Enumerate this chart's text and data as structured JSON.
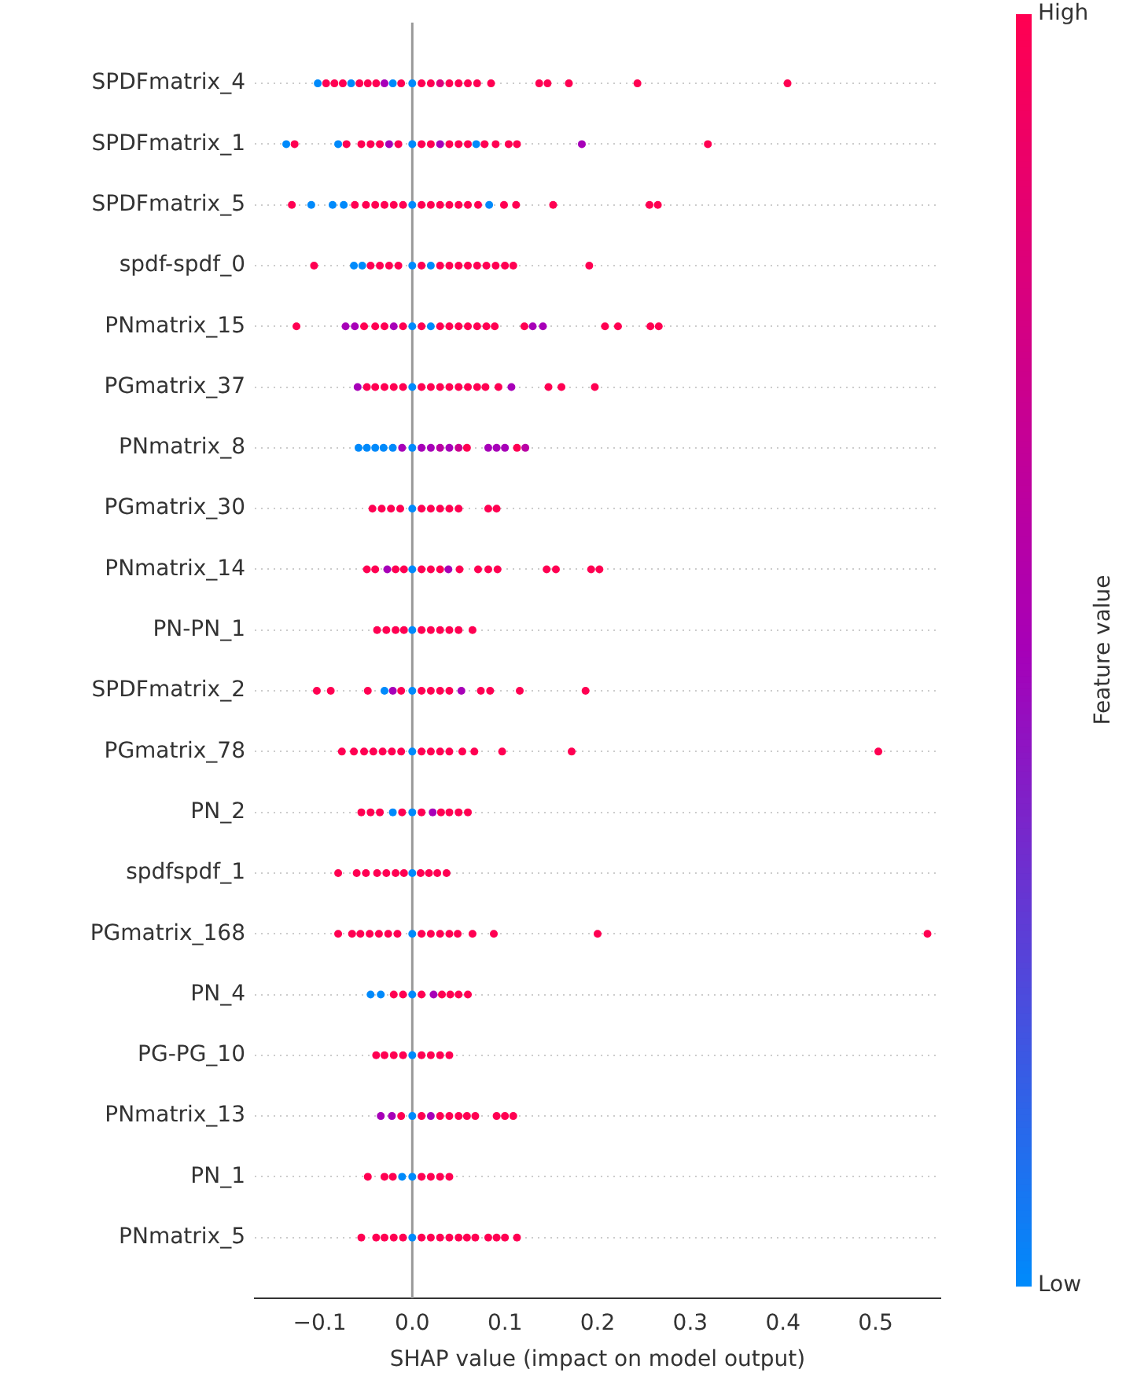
{
  "chart_data": {
    "type": "scatter",
    "orientation": "horizontal",
    "xlabel": "SHAP value (impact on model output)",
    "clabel": "Feature value",
    "clim": [
      0,
      1
    ],
    "cticks": [
      {
        "value": 0,
        "label": "Low"
      },
      {
        "value": 1,
        "label": "High"
      }
    ],
    "xlim": [
      -0.17,
      0.57
    ],
    "xticks": [
      {
        "value": -0.1,
        "label": "−0.1"
      },
      {
        "value": 0,
        "label": "0.0"
      },
      {
        "value": 0.1,
        "label": "0.1"
      },
      {
        "value": 0.2,
        "label": "0.2"
      },
      {
        "value": 0.3,
        "label": "0.3"
      },
      {
        "value": 0.4,
        "label": "0.4"
      },
      {
        "value": 0.5,
        "label": "0.5"
      }
    ],
    "grid": "y",
    "marker": "circle",
    "ref_lines": [
      {
        "axis": "x",
        "value": 0,
        "color": "#999999"
      }
    ],
    "categories": [
      "SPDFmatrix_4",
      "SPDFmatrix_1",
      "SPDFmatrix_5",
      "spdf-spdf_0",
      "PNmatrix_15",
      "PGmatrix_37",
      "PNmatrix_8",
      "PGmatrix_30",
      "PNmatrix_14",
      "PN-PN_1",
      "SPDFmatrix_2",
      "PGmatrix_78",
      "PN_2",
      "spdfspdf_1",
      "PGmatrix_168",
      "PN_4",
      "PG-PG_10",
      "PNmatrix_13",
      "PN_1",
      "PNmatrix_5"
    ],
    "series": [
      {
        "x": [
          "SPDFmatrix_4",
          "SPDFmatrix_4",
          "SPDFmatrix_4",
          "SPDFmatrix_4",
          "SPDFmatrix_4",
          "SPDFmatrix_4",
          "SPDFmatrix_4",
          "SPDFmatrix_4",
          "SPDFmatrix_4",
          "SPDFmatrix_4",
          "SPDFmatrix_4",
          "SPDFmatrix_4",
          "SPDFmatrix_4",
          "SPDFmatrix_4",
          "SPDFmatrix_4",
          "SPDFmatrix_4",
          "SPDFmatrix_4",
          "SPDFmatrix_4",
          "SPDFmatrix_4",
          "SPDFmatrix_4",
          "SPDFmatrix_4",
          "SPDFmatrix_4",
          "SPDFmatrix_4",
          "SPDFmatrix_4",
          "SPDFmatrix_4"
        ],
        "values": [
          -0.102,
          -0.093,
          -0.084,
          -0.075,
          -0.066,
          -0.057,
          -0.048,
          -0.039,
          -0.03,
          -0.021,
          -0.012,
          0,
          0.01,
          0.02,
          0.03,
          0.04,
          0.05,
          0.06,
          0.07,
          0.085,
          0.137,
          0.146,
          0.169,
          0.243,
          0.405
        ],
        "colors": [
          "#008afb",
          "#ff0052",
          "#ff0052",
          "#ff0052",
          "#008afb",
          "#ff0052",
          "#ff0052",
          "#ff0052",
          "#a700b8",
          "#008afb",
          "#ff0052",
          "#008afb",
          "#ff0052",
          "#ff0052",
          "#dc007b",
          "#ff0052",
          "#ff0052",
          "#ff0052",
          "#ff0052",
          "#ff0052",
          "#ff0052",
          "#ff0052",
          "#ff0052",
          "#ff0052",
          "#ff0052"
        ]
      },
      {
        "x": [
          "SPDFmatrix_1",
          "SPDFmatrix_1",
          "SPDFmatrix_1",
          "SPDFmatrix_1",
          "SPDFmatrix_1",
          "SPDFmatrix_1",
          "SPDFmatrix_1",
          "SPDFmatrix_1",
          "SPDFmatrix_1",
          "SPDFmatrix_1",
          "SPDFmatrix_1",
          "SPDFmatrix_1",
          "SPDFmatrix_1",
          "SPDFmatrix_1",
          "SPDFmatrix_1",
          "SPDFmatrix_1",
          "SPDFmatrix_1",
          "SPDFmatrix_1",
          "SPDFmatrix_1",
          "SPDFmatrix_1",
          "SPDFmatrix_1",
          "SPDFmatrix_1",
          "SPDFmatrix_1"
        ],
        "values": [
          -0.136,
          -0.127,
          -0.08,
          -0.071,
          -0.055,
          -0.045,
          -0.035,
          -0.025,
          -0.015,
          0,
          0.01,
          0.02,
          0.03,
          0.04,
          0.05,
          0.06,
          0.069,
          0.078,
          0.09,
          0.104,
          0.113,
          0.183,
          0.319
        ],
        "colors": [
          "#008afb",
          "#ff0052",
          "#008afb",
          "#ff0052",
          "#ff0052",
          "#ff0052",
          "#ff0052",
          "#a700b8",
          "#ff0052",
          "#008afb",
          "#ff0052",
          "#ff0052",
          "#a700b8",
          "#ff0052",
          "#ff0052",
          "#ff0052",
          "#008afb",
          "#ff0052",
          "#ff0052",
          "#ff0052",
          "#ff0052",
          "#a700b8",
          "#ff0052"
        ]
      },
      {
        "x": [
          "SPDFmatrix_5",
          "SPDFmatrix_5",
          "SPDFmatrix_5",
          "SPDFmatrix_5",
          "SPDFmatrix_5",
          "SPDFmatrix_5",
          "SPDFmatrix_5",
          "SPDFmatrix_5",
          "SPDFmatrix_5",
          "SPDFmatrix_5",
          "SPDFmatrix_5",
          "SPDFmatrix_5",
          "SPDFmatrix_5",
          "SPDFmatrix_5",
          "SPDFmatrix_5",
          "SPDFmatrix_5",
          "SPDFmatrix_5",
          "SPDFmatrix_5",
          "SPDFmatrix_5",
          "SPDFmatrix_5",
          "SPDFmatrix_5",
          "SPDFmatrix_5",
          "SPDFmatrix_5",
          "SPDFmatrix_5"
        ],
        "values": [
          -0.13,
          -0.109,
          -0.086,
          -0.074,
          -0.062,
          -0.05,
          -0.04,
          -0.03,
          -0.02,
          -0.01,
          0,
          0.01,
          0.02,
          0.03,
          0.04,
          0.05,
          0.06,
          0.071,
          0.083,
          0.099,
          0.112,
          0.152,
          0.256,
          0.265
        ],
        "colors": [
          "#ff0052",
          "#008afb",
          "#008afb",
          "#008afb",
          "#ff0052",
          "#ff0052",
          "#ff0052",
          "#ff0052",
          "#ff0052",
          "#ff0052",
          "#008afb",
          "#ff0052",
          "#ff0052",
          "#ff0052",
          "#ff0052",
          "#ff0052",
          "#ff0052",
          "#ff0052",
          "#008afb",
          "#ff0052",
          "#ff0052",
          "#ff0052",
          "#ff0052",
          "#ff0052"
        ]
      },
      {
        "x": [
          "spdf-spdf_0",
          "spdf-spdf_0",
          "spdf-spdf_0",
          "spdf-spdf_0",
          "spdf-spdf_0",
          "spdf-spdf_0",
          "spdf-spdf_0",
          "spdf-spdf_0",
          "spdf-spdf_0",
          "spdf-spdf_0",
          "spdf-spdf_0",
          "spdf-spdf_0",
          "spdf-spdf_0",
          "spdf-spdf_0",
          "spdf-spdf_0",
          "spdf-spdf_0",
          "spdf-spdf_0",
          "spdf-spdf_0",
          "spdf-spdf_0",
          "spdf-spdf_0"
        ],
        "values": [
          -0.106,
          -0.063,
          -0.054,
          -0.045,
          -0.035,
          -0.025,
          -0.015,
          0,
          0.01,
          0.02,
          0.03,
          0.04,
          0.05,
          0.06,
          0.07,
          0.08,
          0.09,
          0.1,
          0.109,
          0.191
        ],
        "colors": [
          "#ff0052",
          "#008afb",
          "#008afb",
          "#ff0052",
          "#ff0052",
          "#ff0052",
          "#ff0052",
          "#008afb",
          "#ff0052",
          "#008afb",
          "#ff0052",
          "#ff0052",
          "#ff0052",
          "#ff0052",
          "#ff0052",
          "#ff0052",
          "#ff0052",
          "#ff0052",
          "#ff0052",
          "#ff0052"
        ]
      },
      {
        "x": [
          "PNmatrix_15",
          "PNmatrix_15",
          "PNmatrix_15",
          "PNmatrix_15",
          "PNmatrix_15",
          "PNmatrix_15",
          "PNmatrix_15",
          "PNmatrix_15",
          "PNmatrix_15",
          "PNmatrix_15",
          "PNmatrix_15",
          "PNmatrix_15",
          "PNmatrix_15",
          "PNmatrix_15",
          "PNmatrix_15",
          "PNmatrix_15",
          "PNmatrix_15",
          "PNmatrix_15",
          "PNmatrix_15",
          "PNmatrix_15",
          "PNmatrix_15",
          "PNmatrix_15",
          "PNmatrix_15",
          "PNmatrix_15",
          "PNmatrix_15"
        ],
        "values": [
          -0.125,
          -0.072,
          -0.062,
          -0.052,
          -0.04,
          -0.03,
          -0.02,
          -0.01,
          0,
          0.01,
          0.02,
          0.03,
          0.04,
          0.05,
          0.06,
          0.07,
          0.08,
          0.089,
          0.121,
          0.13,
          0.141,
          0.208,
          0.222,
          0.257,
          0.266
        ],
        "colors": [
          "#ff0052",
          "#a700b8",
          "#a700b8",
          "#ff0052",
          "#ff0052",
          "#ff0052",
          "#a700b8",
          "#ff0052",
          "#008afb",
          "#ff0052",
          "#008afb",
          "#ff0052",
          "#ff0052",
          "#ff0052",
          "#ff0052",
          "#ff0052",
          "#ff0052",
          "#ff0052",
          "#ff0052",
          "#a700b8",
          "#a700b8",
          "#ff0052",
          "#ff0052",
          "#ff0052",
          "#ff0052"
        ]
      },
      {
        "x": [
          "PGmatrix_37",
          "PGmatrix_37",
          "PGmatrix_37",
          "PGmatrix_37",
          "PGmatrix_37",
          "PGmatrix_37",
          "PGmatrix_37",
          "PGmatrix_37",
          "PGmatrix_37",
          "PGmatrix_37",
          "PGmatrix_37",
          "PGmatrix_37",
          "PGmatrix_37",
          "PGmatrix_37",
          "PGmatrix_37",
          "PGmatrix_37",
          "PGmatrix_37",
          "PGmatrix_37",
          "PGmatrix_37",
          "PGmatrix_37"
        ],
        "values": [
          -0.059,
          -0.049,
          -0.04,
          -0.03,
          -0.02,
          -0.01,
          0,
          0.01,
          0.02,
          0.03,
          0.04,
          0.05,
          0.06,
          0.07,
          0.079,
          0.093,
          0.107,
          0.147,
          0.161,
          0.197
        ],
        "colors": [
          "#a700b8",
          "#ff0052",
          "#ff0052",
          "#ff0052",
          "#ff0052",
          "#ff0052",
          "#008afb",
          "#ff0052",
          "#ff0052",
          "#ff0052",
          "#ff0052",
          "#ff0052",
          "#ff0052",
          "#ff0052",
          "#ff0052",
          "#ff0052",
          "#a700b8",
          "#ff0052",
          "#ff0052",
          "#ff0052"
        ]
      },
      {
        "x": [
          "PNmatrix_8",
          "PNmatrix_8",
          "PNmatrix_8",
          "PNmatrix_8",
          "PNmatrix_8",
          "PNmatrix_8",
          "PNmatrix_8",
          "PNmatrix_8",
          "PNmatrix_8",
          "PNmatrix_8",
          "PNmatrix_8",
          "PNmatrix_8",
          "PNmatrix_8",
          "PNmatrix_8",
          "PNmatrix_8",
          "PNmatrix_8",
          "PNmatrix_8",
          "PNmatrix_8"
        ],
        "values": [
          -0.058,
          -0.049,
          -0.04,
          -0.031,
          -0.021,
          -0.011,
          0,
          0.01,
          0.02,
          0.03,
          0.04,
          0.05,
          0.059,
          0.082,
          0.091,
          0.1,
          0.113,
          0.122
        ],
        "colors": [
          "#008afb",
          "#008afb",
          "#008afb",
          "#008afb",
          "#008afb",
          "#a700b8",
          "#008afb",
          "#a700b8",
          "#a700b8",
          "#b900a4",
          "#a700b8",
          "#ca008f",
          "#ff0052",
          "#a700b8",
          "#a700b8",
          "#a700b8",
          "#ff0052",
          "#b900a4"
        ]
      },
      {
        "x": [
          "PGmatrix_30",
          "PGmatrix_30",
          "PGmatrix_30",
          "PGmatrix_30",
          "PGmatrix_30",
          "PGmatrix_30",
          "PGmatrix_30",
          "PGmatrix_30",
          "PGmatrix_30",
          "PGmatrix_30",
          "PGmatrix_30",
          "PGmatrix_30"
        ],
        "values": [
          -0.043,
          -0.033,
          -0.023,
          -0.013,
          0,
          0.01,
          0.02,
          0.03,
          0.04,
          0.05,
          0.082,
          0.091
        ],
        "colors": [
          "#ff0052",
          "#ff0052",
          "#ff0052",
          "#ff0052",
          "#008afb",
          "#ff0052",
          "#ff0052",
          "#ff0052",
          "#ff0052",
          "#ff0052",
          "#ff0052",
          "#ff0052"
        ]
      },
      {
        "x": [
          "PNmatrix_14",
          "PNmatrix_14",
          "PNmatrix_14",
          "PNmatrix_14",
          "PNmatrix_14",
          "PNmatrix_14",
          "PNmatrix_14",
          "PNmatrix_14",
          "PNmatrix_14",
          "PNmatrix_14",
          "PNmatrix_14",
          "PNmatrix_14",
          "PNmatrix_14",
          "PNmatrix_14",
          "PNmatrix_14",
          "PNmatrix_14",
          "PNmatrix_14",
          "PNmatrix_14"
        ],
        "values": [
          -0.049,
          -0.04,
          -0.027,
          -0.018,
          -0.009,
          0,
          0.01,
          0.02,
          0.03,
          0.039,
          0.051,
          0.071,
          0.082,
          0.092,
          0.145,
          0.155,
          0.193,
          0.202
        ],
        "colors": [
          "#ff0052",
          "#ff0052",
          "#a700b8",
          "#ff0052",
          "#ff0052",
          "#008afb",
          "#ff0052",
          "#ff0052",
          "#ff0052",
          "#a700b8",
          "#ff0052",
          "#ff0052",
          "#ff0052",
          "#ff0052",
          "#ff0052",
          "#ff0052",
          "#ff0052",
          "#ff0052"
        ]
      },
      {
        "x": [
          "PN-PN_1",
          "PN-PN_1",
          "PN-PN_1",
          "PN-PN_1",
          "PN-PN_1",
          "PN-PN_1",
          "PN-PN_1",
          "PN-PN_1",
          "PN-PN_1",
          "PN-PN_1",
          "PN-PN_1"
        ],
        "values": [
          -0.038,
          -0.028,
          -0.018,
          -0.009,
          0,
          0.01,
          0.02,
          0.03,
          0.04,
          0.05,
          0.065
        ],
        "colors": [
          "#ff0052",
          "#ff0052",
          "#ff0052",
          "#ff0052",
          "#008afb",
          "#ff0052",
          "#ff0052",
          "#ff0052",
          "#ff0052",
          "#ff0052",
          "#ff0052"
        ]
      },
      {
        "x": [
          "SPDFmatrix_2",
          "SPDFmatrix_2",
          "SPDFmatrix_2",
          "SPDFmatrix_2",
          "SPDFmatrix_2",
          "SPDFmatrix_2",
          "SPDFmatrix_2",
          "SPDFmatrix_2",
          "SPDFmatrix_2",
          "SPDFmatrix_2",
          "SPDFmatrix_2",
          "SPDFmatrix_2",
          "SPDFmatrix_2",
          "SPDFmatrix_2",
          "SPDFmatrix_2",
          "SPDFmatrix_2"
        ],
        "values": [
          -0.103,
          -0.088,
          -0.048,
          -0.03,
          -0.021,
          -0.012,
          0,
          0.01,
          0.02,
          0.03,
          0.04,
          0.053,
          0.074,
          0.084,
          0.116,
          0.187
        ],
        "colors": [
          "#ff0052",
          "#ff0052",
          "#ff0052",
          "#008afb",
          "#a700b8",
          "#ff0052",
          "#008afb",
          "#ff0052",
          "#ff0052",
          "#ff0052",
          "#ff0052",
          "#a700b8",
          "#ff0052",
          "#ff0052",
          "#ff0052",
          "#ff0052"
        ]
      },
      {
        "x": [
          "PGmatrix_78",
          "PGmatrix_78",
          "PGmatrix_78",
          "PGmatrix_78",
          "PGmatrix_78",
          "PGmatrix_78",
          "PGmatrix_78",
          "PGmatrix_78",
          "PGmatrix_78",
          "PGmatrix_78",
          "PGmatrix_78",
          "PGmatrix_78",
          "PGmatrix_78",
          "PGmatrix_78",
          "PGmatrix_78",
          "PGmatrix_78",
          "PGmatrix_78"
        ],
        "values": [
          -0.076,
          -0.063,
          -0.052,
          -0.042,
          -0.032,
          -0.022,
          -0.012,
          0,
          0.01,
          0.02,
          0.03,
          0.04,
          0.054,
          0.067,
          0.097,
          0.172,
          0.503
        ],
        "colors": [
          "#ff0052",
          "#ff0052",
          "#ff0052",
          "#ff0052",
          "#ff0052",
          "#ff0052",
          "#ff0052",
          "#008afb",
          "#ff0052",
          "#ff0052",
          "#ff0052",
          "#ff0052",
          "#ff0052",
          "#ff0052",
          "#ff0052",
          "#ff0052",
          "#ff0052"
        ]
      },
      {
        "x": [
          "PN_2",
          "PN_2",
          "PN_2",
          "PN_2",
          "PN_2",
          "PN_2",
          "PN_2",
          "PN_2",
          "PN_2",
          "PN_2",
          "PN_2",
          "PN_2"
        ],
        "values": [
          -0.055,
          -0.045,
          -0.035,
          -0.021,
          -0.011,
          0,
          0.01,
          0.022,
          0.031,
          0.04,
          0.05,
          0.06
        ],
        "colors": [
          "#ff0052",
          "#ff0052",
          "#ff0052",
          "#008afb",
          "#ff0052",
          "#008afb",
          "#ff0052",
          "#a700b8",
          "#ff0052",
          "#ff0052",
          "#ff0052",
          "#ff0052"
        ]
      },
      {
        "x": [
          "spdfspdf_1",
          "spdfspdf_1",
          "spdfspdf_1",
          "spdfspdf_1",
          "spdfspdf_1",
          "spdfspdf_1",
          "spdfspdf_1",
          "spdfspdf_1",
          "spdfspdf_1",
          "spdfspdf_1",
          "spdfspdf_1",
          "spdfspdf_1"
        ],
        "values": [
          -0.08,
          -0.06,
          -0.05,
          -0.038,
          -0.028,
          -0.018,
          -0.009,
          0,
          0.009,
          0.018,
          0.027,
          0.037
        ],
        "colors": [
          "#ff0052",
          "#ff0052",
          "#ff0052",
          "#ff0052",
          "#ff0052",
          "#ff0052",
          "#ff0052",
          "#008afb",
          "#ff0052",
          "#ff0052",
          "#ff0052",
          "#ff0052"
        ]
      },
      {
        "x": [
          "PGmatrix_168",
          "PGmatrix_168",
          "PGmatrix_168",
          "PGmatrix_168",
          "PGmatrix_168",
          "PGmatrix_168",
          "PGmatrix_168",
          "PGmatrix_168",
          "PGmatrix_168",
          "PGmatrix_168",
          "PGmatrix_168",
          "PGmatrix_168",
          "PGmatrix_168",
          "PGmatrix_168",
          "PGmatrix_168",
          "PGmatrix_168",
          "PGmatrix_168"
        ],
        "values": [
          -0.08,
          -0.065,
          -0.056,
          -0.046,
          -0.036,
          -0.026,
          -0.016,
          0,
          0.01,
          0.02,
          0.03,
          0.04,
          0.049,
          0.065,
          0.088,
          0.2,
          0.556
        ],
        "colors": [
          "#ff0052",
          "#ff0052",
          "#ff0052",
          "#ff0052",
          "#ff0052",
          "#ff0052",
          "#ff0052",
          "#008afb",
          "#ff0052",
          "#ff0052",
          "#ff0052",
          "#ff0052",
          "#ff0052",
          "#ff0052",
          "#ff0052",
          "#ff0052",
          "#ff0052"
        ]
      },
      {
        "x": [
          "PN_4",
          "PN_4",
          "PN_4",
          "PN_4",
          "PN_4",
          "PN_4",
          "PN_4",
          "PN_4",
          "PN_4",
          "PN_4",
          "PN_4"
        ],
        "values": [
          -0.045,
          -0.034,
          -0.02,
          -0.01,
          0,
          0.01,
          0.023,
          0.032,
          0.041,
          0.05,
          0.06
        ],
        "colors": [
          "#008afb",
          "#008afb",
          "#ff0052",
          "#ff0052",
          "#008afb",
          "#ff0052",
          "#a700b8",
          "#ff0052",
          "#ff0052",
          "#ff0052",
          "#ff0052"
        ]
      },
      {
        "x": [
          "PG-PG_10",
          "PG-PG_10",
          "PG-PG_10",
          "PG-PG_10",
          "PG-PG_10",
          "PG-PG_10",
          "PG-PG_10",
          "PG-PG_10",
          "PG-PG_10"
        ],
        "values": [
          -0.039,
          -0.03,
          -0.02,
          -0.01,
          0,
          0.01,
          0.02,
          0.03,
          0.04
        ],
        "colors": [
          "#ff0052",
          "#ff0052",
          "#ff0052",
          "#ff0052",
          "#008afb",
          "#ff0052",
          "#ff0052",
          "#ff0052",
          "#ff0052"
        ]
      },
      {
        "x": [
          "PNmatrix_13",
          "PNmatrix_13",
          "PNmatrix_13",
          "PNmatrix_13",
          "PNmatrix_13",
          "PNmatrix_13",
          "PNmatrix_13",
          "PNmatrix_13",
          "PNmatrix_13",
          "PNmatrix_13",
          "PNmatrix_13",
          "PNmatrix_13",
          "PNmatrix_13",
          "PNmatrix_13"
        ],
        "values": [
          -0.034,
          -0.022,
          -0.012,
          0,
          0.01,
          0.02,
          0.03,
          0.04,
          0.05,
          0.059,
          0.068,
          0.091,
          0.1,
          0.109
        ],
        "colors": [
          "#a700b8",
          "#a700b8",
          "#ff0052",
          "#008afb",
          "#ff0052",
          "#a700b8",
          "#ff0052",
          "#ff0052",
          "#ff0052",
          "#ff0052",
          "#ff0052",
          "#ff0052",
          "#ff0052",
          "#ff0052"
        ]
      },
      {
        "x": [
          "PN_1",
          "PN_1",
          "PN_1",
          "PN_1",
          "PN_1",
          "PN_1",
          "PN_1",
          "PN_1",
          "PN_1"
        ],
        "values": [
          -0.048,
          -0.03,
          -0.021,
          -0.011,
          0,
          0.01,
          0.02,
          0.03,
          0.04
        ],
        "colors": [
          "#ff0052",
          "#ff0052",
          "#ff0052",
          "#008afb",
          "#008afb",
          "#ff0052",
          "#ff0052",
          "#ff0052",
          "#ff0052"
        ]
      },
      {
        "x": [
          "PNmatrix_5",
          "PNmatrix_5",
          "PNmatrix_5",
          "PNmatrix_5",
          "PNmatrix_5",
          "PNmatrix_5",
          "PNmatrix_5",
          "PNmatrix_5",
          "PNmatrix_5",
          "PNmatrix_5",
          "PNmatrix_5",
          "PNmatrix_5",
          "PNmatrix_5",
          "PNmatrix_5",
          "PNmatrix_5",
          "PNmatrix_5",
          "PNmatrix_5"
        ],
        "values": [
          -0.055,
          -0.039,
          -0.03,
          -0.02,
          -0.01,
          0,
          0.01,
          0.02,
          0.03,
          0.04,
          0.05,
          0.059,
          0.068,
          0.082,
          0.091,
          0.1,
          0.113
        ],
        "colors": [
          "#ff0052",
          "#ff0052",
          "#ff0052",
          "#ff0052",
          "#ff0052",
          "#008afb",
          "#ff0052",
          "#ff0052",
          "#ff0052",
          "#ff0052",
          "#ff0052",
          "#ff0052",
          "#ff0052",
          "#ff0052",
          "#ff0052",
          "#ff0052",
          "#ff0052"
        ]
      }
    ]
  }
}
